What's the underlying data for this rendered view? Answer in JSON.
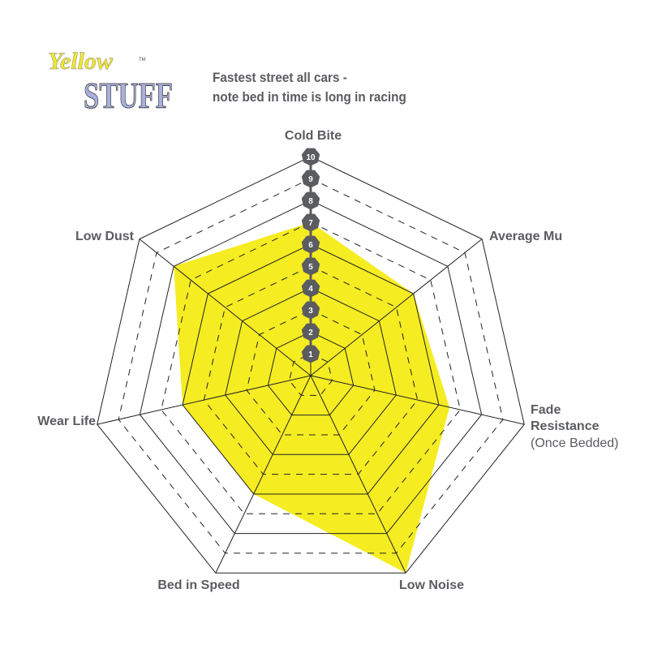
{
  "logo": {
    "line1": "Yellow",
    "line2": "STUFF",
    "mark": "TM"
  },
  "title_lines": [
    "Fastest street all cars -",
    "note bed in time is long in racing"
  ],
  "colors": {
    "fill": "#f5ec22",
    "badge": "#5b5c60",
    "text": "#5b5c60",
    "grid": "#222222"
  },
  "chart_data": {
    "type": "radar",
    "axes": [
      {
        "label": "Cold Bite",
        "sub": ""
      },
      {
        "label": "Average Mu",
        "sub": ""
      },
      {
        "label": "Fade Resistance",
        "sub": "(Once Bedded)"
      },
      {
        "label": "Low Noise",
        "sub": ""
      },
      {
        "label": "Bed in Speed",
        "sub": ""
      },
      {
        "label": "Wear Life",
        "sub": ""
      },
      {
        "label": "Low Dust",
        "sub": ""
      }
    ],
    "values": [
      7,
      6,
      6.5,
      10,
      6,
      6,
      8
    ],
    "scale": {
      "min": 0,
      "max": 10,
      "ticks": [
        "1",
        "2",
        "3",
        "4",
        "5",
        "6",
        "7",
        "8",
        "9",
        "10"
      ]
    },
    "grid": "heptagon rings, solid on even levels, dashed on odd levels"
  }
}
